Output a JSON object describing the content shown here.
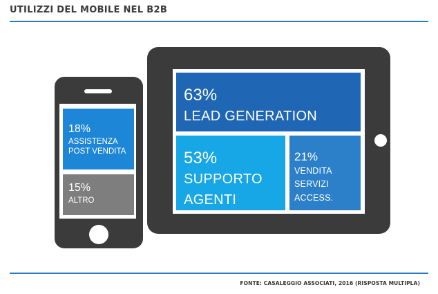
{
  "title": "UTILIZZI DEL MOBILE NEL B2B",
  "source": "FONTE: CASALEGGIO ASSOCIATI, 2016 (RISPOSTA MULTIPLA)",
  "colors": {
    "rule": "#2b7ac4",
    "device": "#3b3b3b",
    "lead_generation": "#1f67b5",
    "supporto_agenti": "#17a6e6",
    "vendita_servizi": "#2c80c9",
    "assistenza": "#1e86d6",
    "altro": "#7e7e7e"
  },
  "chart_data": {
    "type": "treemap",
    "title": "UTILIZZI DEL MOBILE NEL B2B",
    "unit": "%",
    "items": [
      {
        "value_label": "63%",
        "value": 63,
        "label_lines": [
          "LEAD GENERATION"
        ],
        "device": "tablet"
      },
      {
        "value_label": "53%",
        "value": 53,
        "label_lines": [
          "SUPPORTO",
          "AGENTI"
        ],
        "device": "tablet"
      },
      {
        "value_label": "21%",
        "value": 21,
        "label_lines": [
          "VENDITA",
          "SERVIZI",
          "ACCESS."
        ],
        "device": "tablet"
      },
      {
        "value_label": "18%",
        "value": 18,
        "label_lines": [
          "ASSISTENZA",
          "POST VENDITA"
        ],
        "device": "phone"
      },
      {
        "value_label": "15%",
        "value": 15,
        "label_lines": [
          "ALTRO"
        ],
        "device": "phone"
      }
    ]
  }
}
